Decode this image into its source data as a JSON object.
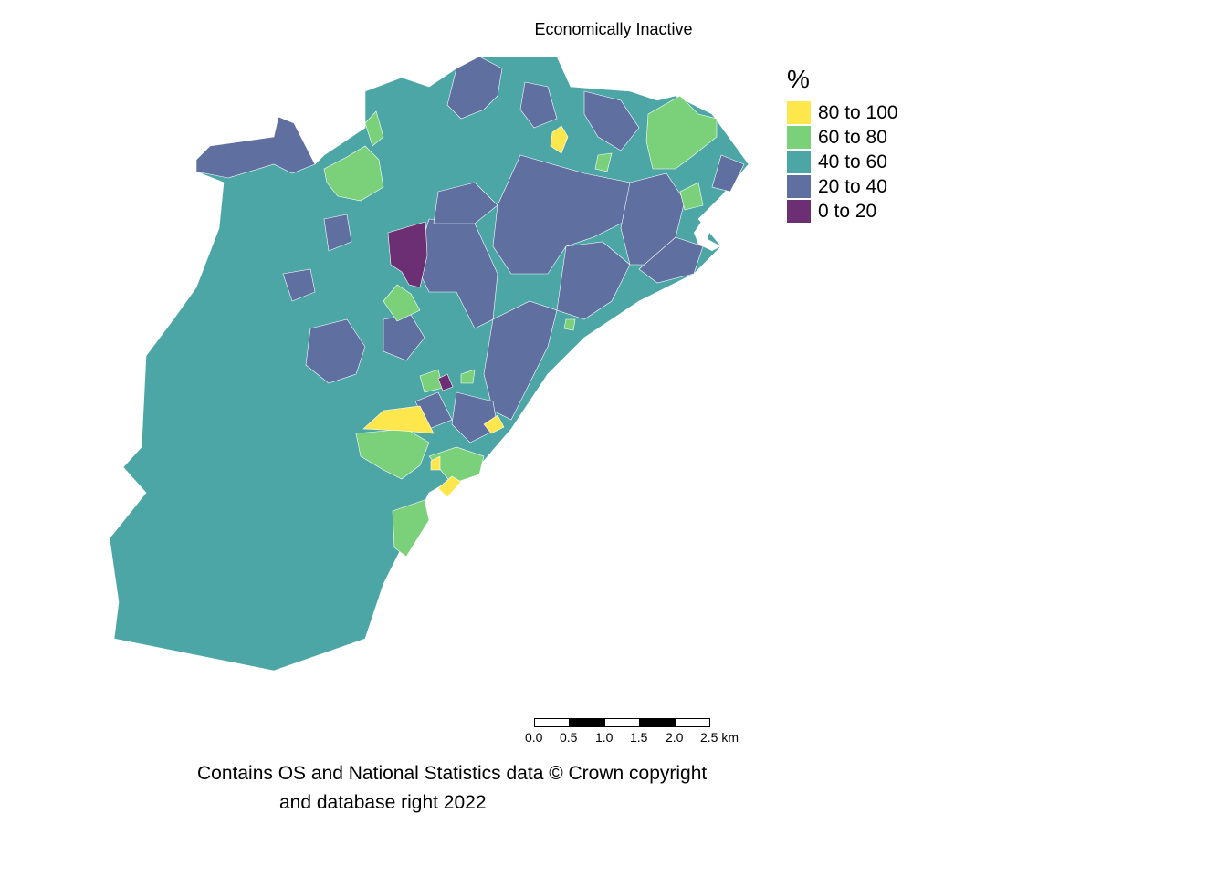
{
  "map": {
    "title": "Economically Inactive",
    "legend": {
      "title": "%",
      "items": [
        {
          "label": "80 to 100",
          "color": "#FDE74C"
        },
        {
          "label": "60 to 80",
          "color": "#7BD17A"
        },
        {
          "label": "40 to 60",
          "color": "#4DA6A6"
        },
        {
          "label": "20 to 40",
          "color": "#5E6FA0"
        },
        {
          "label": "0 to 20",
          "color": "#6C2F73"
        }
      ]
    },
    "scale": {
      "unit": "km",
      "ticks": [
        "0.0",
        "0.5",
        "1.0",
        "1.5",
        "2.0",
        "2.5 km"
      ]
    },
    "credit": {
      "line1": "Contains OS and National Statistics data © Crown copyright",
      "line2": "and database right 2022"
    }
  }
}
